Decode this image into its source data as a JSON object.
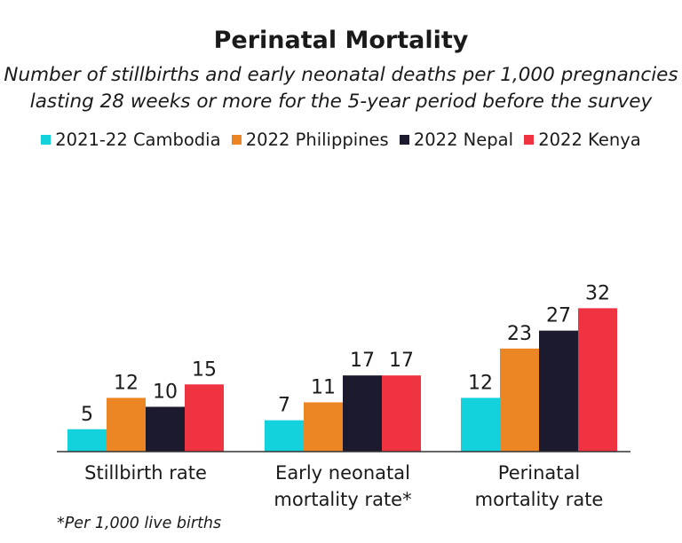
{
  "title": "Perinatal Mortality",
  "subtitle_lines": [
    "Number of stillbirths and early neonatal deaths per 1,000 pregnancies",
    "lasting 28 weeks or more for the 5-year period before the survey"
  ],
  "footnote": "*Per 1,000 live births",
  "chart_data": {
    "type": "bar",
    "title": "Perinatal Mortality",
    "categories": [
      [
        "Stillbirth rate"
      ],
      [
        "Early neonatal",
        "mortality rate*"
      ],
      [
        "Perinatal",
        "mortality rate"
      ]
    ],
    "series": [
      {
        "name": "2021-22 Cambodia",
        "color": "#14d2dc",
        "values": [
          5,
          7,
          12
        ]
      },
      {
        "name": "2022 Philippines",
        "color": "#ec8625",
        "values": [
          12,
          11,
          23
        ]
      },
      {
        "name": "2022 Nepal",
        "color": "#1b1a2e",
        "values": [
          10,
          17,
          27
        ]
      },
      {
        "name": "2022 Kenya",
        "color": "#ef3340",
        "values": [
          15,
          17,
          32
        ]
      }
    ],
    "ylim": [
      0,
      32
    ],
    "grid": false,
    "legend": "top",
    "data_labels": true
  }
}
